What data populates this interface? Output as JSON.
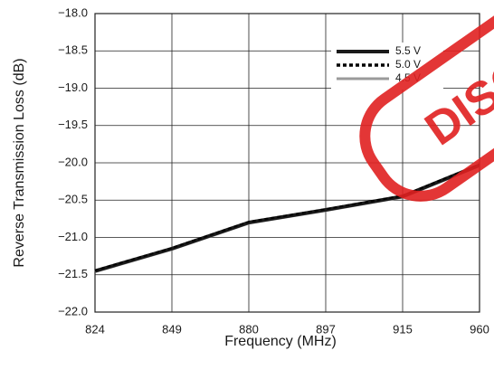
{
  "chart_data": {
    "type": "line",
    "x_label": "Frequency (MHz)",
    "y_label": "Reverse Transmission Loss (dB)",
    "categories": [
      "824",
      "849",
      "880",
      "897",
      "915",
      "960"
    ],
    "series": [
      {
        "name": "4.5 V",
        "color": "#9a9a9a",
        "style": "solid",
        "values": [
          -21.46,
          -21.16,
          -20.81,
          -20.64,
          -20.46,
          -20.04
        ]
      },
      {
        "name": "5.5 V",
        "color": "#1a1a1a",
        "style": "solid",
        "values": [
          -21.45,
          -21.15,
          -20.8,
          -20.63,
          -20.45,
          -20.03
        ]
      },
      {
        "name": "5.0 V",
        "color": "#000000",
        "style": "dotted",
        "values": [
          -21.44,
          -21.14,
          -20.79,
          -20.62,
          -20.44,
          -20.02
        ]
      }
    ],
    "legend_order": [
      1,
      2,
      0
    ],
    "ylim": [
      -22,
      -18
    ],
    "yticks": [
      {
        "value": -22,
        "label": "−22.0"
      },
      {
        "value": -21.5,
        "label": "−21.5"
      },
      {
        "value": -21,
        "label": "−21.0"
      },
      {
        "value": -20.5,
        "label": "−20.5"
      },
      {
        "value": -20,
        "label": "−20.0"
      },
      {
        "value": -19.5,
        "label": "−19.5"
      },
      {
        "value": -19,
        "label": "−19.0"
      },
      {
        "value": -18.5,
        "label": "−18.5"
      },
      {
        "value": -18,
        "label": "−18.0"
      }
    ],
    "grid": true,
    "watermark": "DISC"
  }
}
